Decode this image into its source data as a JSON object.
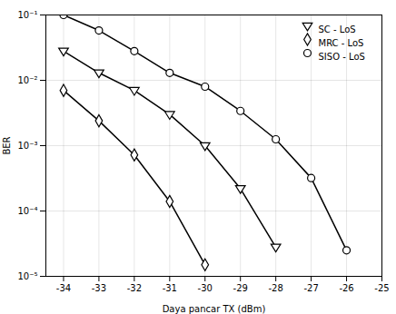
{
  "chart_data": {
    "type": "line",
    "xlabel": "Daya pancar TX (dBm)",
    "ylabel": "BER",
    "log": "y",
    "grid": true,
    "legend": "upper right",
    "xlim": [
      -34.5,
      -25
    ],
    "ylim": [
      1e-05,
      0.1
    ],
    "xticks": [
      -34,
      -33,
      -32,
      -31,
      -30,
      -29,
      -28,
      -27,
      -26,
      -25
    ],
    "yticks": [
      {
        "value": 1e-05,
        "label": "10⁻⁵"
      },
      {
        "value": 0.0001,
        "label": "10⁻⁴"
      },
      {
        "value": 0.001,
        "label": "10⁻³"
      },
      {
        "value": 0.01,
        "label": "10⁻²"
      },
      {
        "value": 0.1,
        "label": "10⁻¹"
      }
    ],
    "series": [
      {
        "name": "SC - LoS",
        "color": "black",
        "marker": "triangle_down",
        "x": [
          -34,
          -33,
          -32,
          -31,
          -30,
          -29,
          -28
        ],
        "values": [
          0.028,
          0.013,
          0.007,
          0.003,
          0.001,
          0.00022,
          2.8e-05
        ]
      },
      {
        "name": "MRC - LoS",
        "color": "black",
        "marker": "diamond",
        "x": [
          -34,
          -33,
          -32,
          -31,
          -30
        ],
        "values": [
          0.007,
          0.0024,
          0.00072,
          0.00014,
          1.5e-05
        ]
      },
      {
        "name": "SISO - LoS",
        "color": "black",
        "marker": "circle",
        "x": [
          -34,
          -33,
          -32,
          -31,
          -30,
          -29,
          -28,
          -27,
          -26
        ],
        "values": [
          0.1,
          0.058,
          0.028,
          0.013,
          0.008,
          0.0034,
          0.00125,
          0.00032,
          2.5e-05
        ]
      }
    ]
  }
}
